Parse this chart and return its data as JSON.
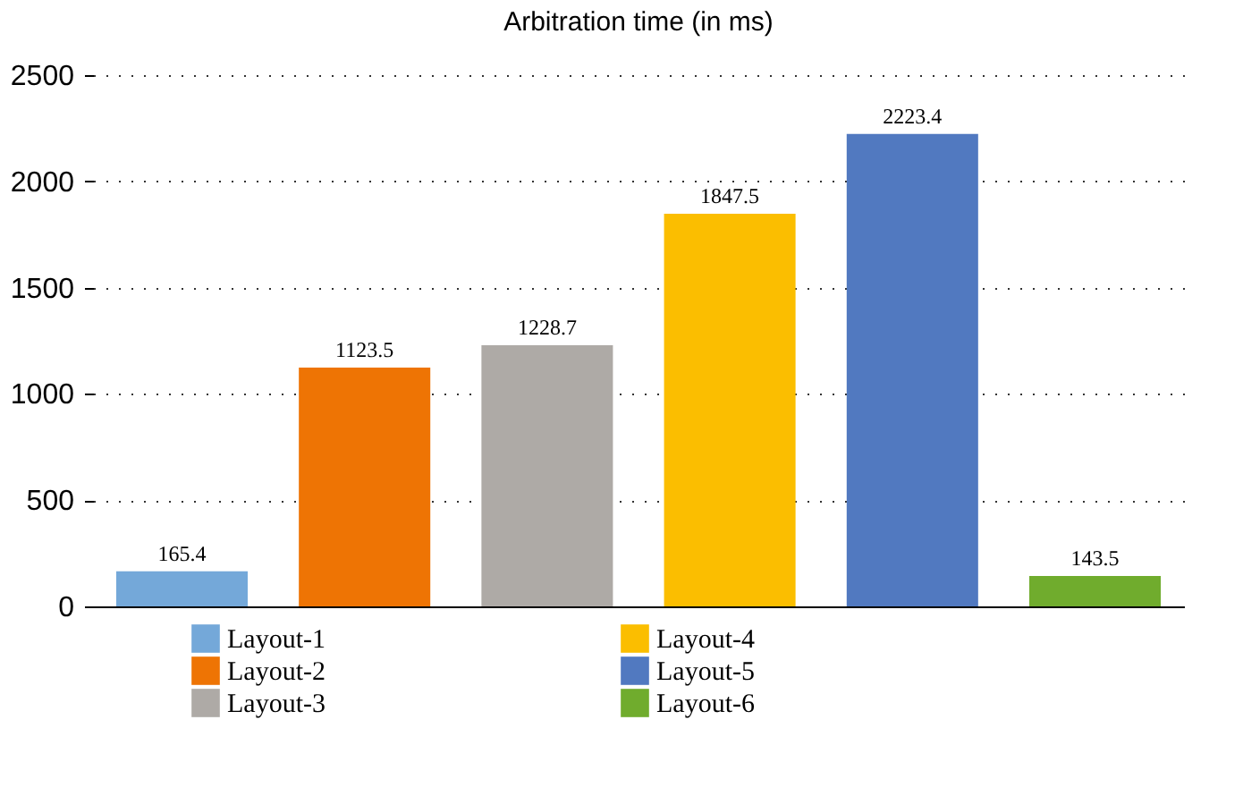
{
  "chart_data": {
    "type": "bar",
    "title": "Arbitration time (in ms)",
    "categories": [
      null
    ],
    "series": [
      {
        "name": "Layout-1",
        "color": "#74a8d9",
        "values": [
          165.4
        ]
      },
      {
        "name": "Layout-2",
        "color": "#ee7404",
        "values": [
          1123.5
        ]
      },
      {
        "name": "Layout-3",
        "color": "#aeaaa6",
        "values": [
          1228.7
        ]
      },
      {
        "name": "Layout-4",
        "color": "#fbbe00",
        "values": [
          1847.5
        ]
      },
      {
        "name": "Layout-5",
        "color": "#5179c0",
        "values": [
          2223.4
        ]
      },
      {
        "name": "Layout-6",
        "color": "#70ac2d",
        "values": [
          143.5
        ]
      }
    ],
    "ylim": [
      0,
      2500
    ],
    "yticks": [
      0,
      500,
      1000,
      1500,
      2000,
      2500
    ],
    "grid": "y",
    "legend": "bottom",
    "data_labels": true,
    "tick_labels": "y"
  }
}
